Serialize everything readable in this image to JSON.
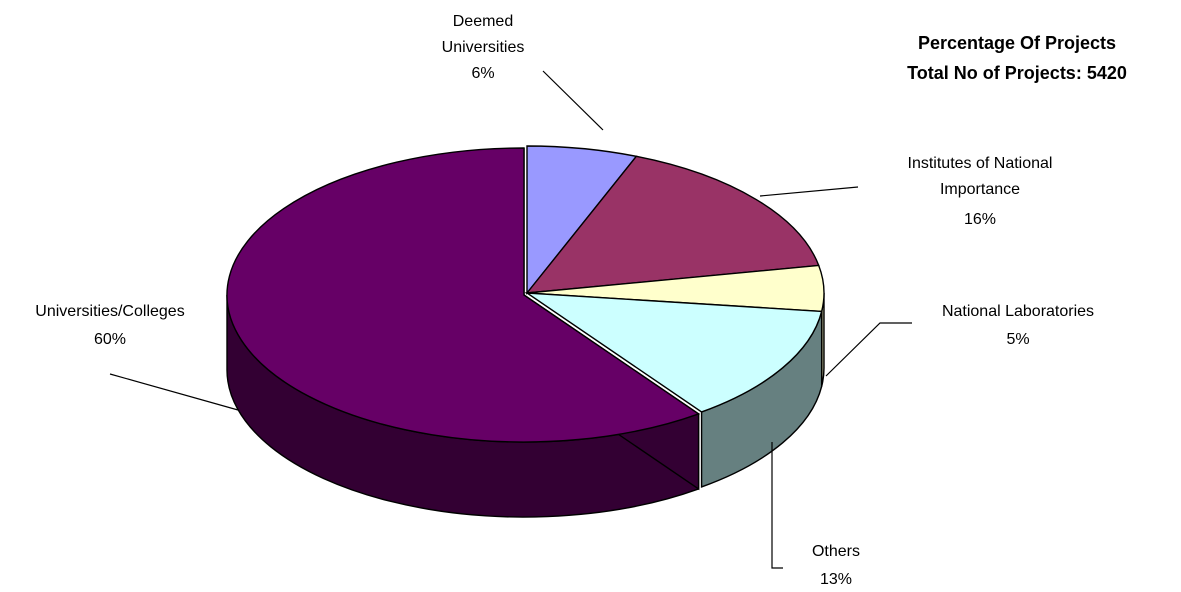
{
  "chart_data": {
    "type": "pie",
    "title": [
      "Percentage Of Projects",
      "Total No of Projects: 5420"
    ],
    "slices": [
      {
        "name_lines": [
          "Deemed",
          "Universities"
        ],
        "value": 6,
        "value_label": "6%",
        "color": "#9999FF",
        "side_color": "#6B6BB3"
      },
      {
        "name_lines": [
          "Institutes of National",
          "Importance"
        ],
        "value": 16,
        "value_label": "16%",
        "color": "#993366",
        "side_color": "#6B2447"
      },
      {
        "name_lines": [
          "National Laboratories"
        ],
        "value": 5,
        "value_label": "5%",
        "color": "#FFFFCC",
        "side_color": "#B3B38F"
      },
      {
        "name_lines": [
          "Others"
        ],
        "value": 13,
        "value_label": "13%",
        "color": "#CCFFFF",
        "side_color": "#668080"
      },
      {
        "name_lines": [
          "Universities/Colleges"
        ],
        "value": 60,
        "value_label": "60%",
        "color": "#660066",
        "side_color": "#330033",
        "exploded": true
      }
    ]
  }
}
